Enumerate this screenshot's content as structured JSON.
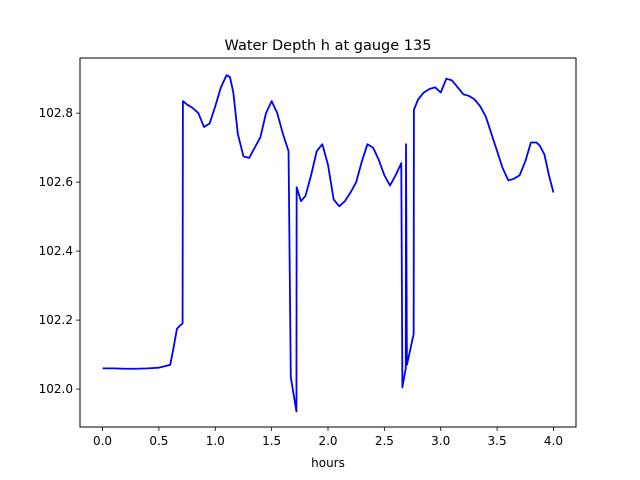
{
  "chart_data": {
    "type": "line",
    "title": "Water Depth h at gauge 135",
    "xlabel": "hours",
    "ylabel": "",
    "xlim": [
      -0.2,
      4.2
    ],
    "ylim": [
      101.89,
      102.96
    ],
    "grid": false,
    "color": "#0000ff",
    "xticks": [
      0.0,
      0.5,
      1.0,
      1.5,
      2.0,
      2.5,
      3.0,
      3.5,
      4.0
    ],
    "xtick_labels": [
      "0.0",
      "0.5",
      "1.0",
      "1.5",
      "2.0",
      "2.5",
      "3.0",
      "3.5",
      "4.0"
    ],
    "yticks": [
      102.0,
      102.2,
      102.4,
      102.6,
      102.8
    ],
    "ytick_labels": [
      "102.0",
      "102.2",
      "102.4",
      "102.6",
      "102.8"
    ],
    "series": [
      {
        "x": [
          0.0,
          0.1,
          0.2,
          0.3,
          0.4,
          0.5,
          0.6,
          0.63,
          0.66,
          0.69,
          0.71,
          0.713,
          0.75,
          0.8,
          0.85,
          0.9,
          0.95,
          1.0,
          1.05,
          1.1,
          1.13,
          1.16,
          1.2,
          1.25,
          1.3,
          1.35,
          1.4,
          1.45,
          1.5,
          1.55,
          1.6,
          1.65,
          1.67,
          1.672,
          1.72,
          1.722,
          1.76,
          1.8,
          1.85,
          1.9,
          1.95,
          2.0,
          2.05,
          2.1,
          2.15,
          2.2,
          2.25,
          2.3,
          2.35,
          2.4,
          2.45,
          2.5,
          2.55,
          2.6,
          2.65,
          2.66,
          2.662,
          2.69,
          2.692,
          2.7,
          2.76,
          2.762,
          2.8,
          2.85,
          2.9,
          2.95,
          3.0,
          3.05,
          3.1,
          3.15,
          3.2,
          3.25,
          3.3,
          3.35,
          3.4,
          3.45,
          3.5,
          3.55,
          3.6,
          3.65,
          3.7,
          3.75,
          3.8,
          3.85,
          3.88,
          3.92,
          3.96,
          4.0
        ],
        "values": [
          102.06,
          102.06,
          102.059,
          102.059,
          102.06,
          102.062,
          102.07,
          102.12,
          102.175,
          102.185,
          102.19,
          102.835,
          102.825,
          102.815,
          102.8,
          102.76,
          102.77,
          102.82,
          102.875,
          102.91,
          102.905,
          102.86,
          102.74,
          102.675,
          102.67,
          102.7,
          102.73,
          102.8,
          102.835,
          102.8,
          102.74,
          102.69,
          102.035,
          102.03,
          101.935,
          102.585,
          102.545,
          102.56,
          102.62,
          102.69,
          102.71,
          102.65,
          102.55,
          102.53,
          102.545,
          102.57,
          102.6,
          102.66,
          102.71,
          102.7,
          102.665,
          102.62,
          102.59,
          102.62,
          102.655,
          102.005,
          102.01,
          102.06,
          102.71,
          102.07,
          102.16,
          102.81,
          102.84,
          102.86,
          102.87,
          102.875,
          102.86,
          102.9,
          102.895,
          102.875,
          102.855,
          102.85,
          102.84,
          102.82,
          102.79,
          102.74,
          102.69,
          102.64,
          102.605,
          102.61,
          102.62,
          102.66,
          102.715,
          102.715,
          102.705,
          102.68,
          102.62,
          102.57
        ]
      }
    ]
  }
}
